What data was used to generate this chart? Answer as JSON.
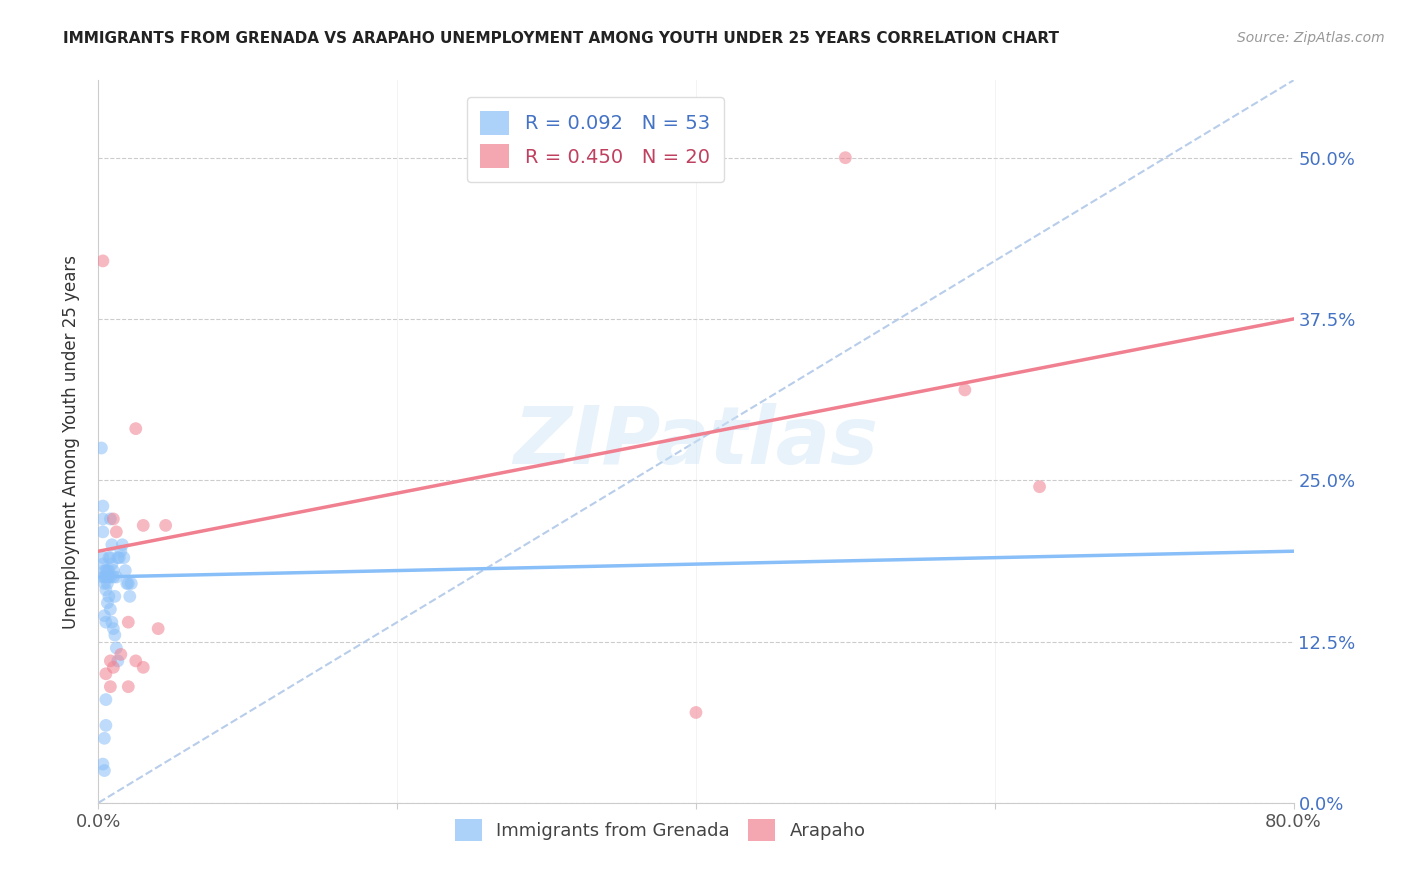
{
  "title": "IMMIGRANTS FROM GRENADA VS ARAPAHO UNEMPLOYMENT AMONG YOUTH UNDER 25 YEARS CORRELATION CHART",
  "source": "Source: ZipAtlas.com",
  "ylabel": "Unemployment Among Youth under 25 years",
  "xlim": [
    0.0,
    0.8
  ],
  "ylim": [
    0.0,
    0.56
  ],
  "yticks": [
    0.0,
    0.125,
    0.25,
    0.375,
    0.5
  ],
  "ytick_labels": [
    "0.0%",
    "12.5%",
    "25.0%",
    "37.5%",
    "50.0%"
  ],
  "xticks": [
    0.0,
    0.2,
    0.4,
    0.6,
    0.8
  ],
  "xtick_labels": [
    "0.0%",
    "",
    "",
    "",
    "80.0%"
  ],
  "watermark": "ZIPatlas",
  "legend_entries": [
    {
      "label": "R = 0.092   N = 53",
      "color": "#89bff8"
    },
    {
      "label": "R = 0.450   N = 20",
      "color": "#f080a0"
    }
  ],
  "blue_scatter_x": [
    0.002,
    0.003,
    0.003,
    0.003,
    0.003,
    0.003,
    0.004,
    0.004,
    0.004,
    0.004,
    0.004,
    0.005,
    0.005,
    0.005,
    0.005,
    0.005,
    0.006,
    0.006,
    0.006,
    0.006,
    0.007,
    0.007,
    0.007,
    0.007,
    0.008,
    0.008,
    0.008,
    0.008,
    0.009,
    0.009,
    0.009,
    0.01,
    0.01,
    0.01,
    0.011,
    0.011,
    0.012,
    0.012,
    0.013,
    0.013,
    0.014,
    0.015,
    0.016,
    0.017,
    0.018,
    0.019,
    0.02,
    0.021,
    0.022,
    0.003,
    0.005,
    0.003,
    0.004
  ],
  "blue_scatter_y": [
    0.275,
    0.19,
    0.21,
    0.22,
    0.185,
    0.175,
    0.05,
    0.17,
    0.175,
    0.18,
    0.145,
    0.08,
    0.165,
    0.175,
    0.18,
    0.14,
    0.17,
    0.175,
    0.18,
    0.155,
    0.19,
    0.175,
    0.18,
    0.16,
    0.22,
    0.19,
    0.175,
    0.15,
    0.2,
    0.185,
    0.14,
    0.18,
    0.175,
    0.135,
    0.16,
    0.13,
    0.175,
    0.12,
    0.19,
    0.11,
    0.19,
    0.195,
    0.2,
    0.19,
    0.18,
    0.17,
    0.17,
    0.16,
    0.17,
    0.23,
    0.06,
    0.03,
    0.025
  ],
  "pink_scatter_x": [
    0.003,
    0.005,
    0.008,
    0.01,
    0.012,
    0.015,
    0.02,
    0.025,
    0.03,
    0.03,
    0.04,
    0.045,
    0.5,
    0.58,
    0.63,
    0.4,
    0.01,
    0.025,
    0.02,
    0.008
  ],
  "pink_scatter_y": [
    0.42,
    0.1,
    0.11,
    0.22,
    0.21,
    0.115,
    0.14,
    0.29,
    0.215,
    0.105,
    0.135,
    0.215,
    0.5,
    0.32,
    0.245,
    0.07,
    0.105,
    0.11,
    0.09,
    0.09
  ],
  "blue_line_x0": 0.0,
  "blue_line_x1": 0.8,
  "blue_line_y0": 0.175,
  "blue_line_y1": 0.195,
  "pink_line_x0": 0.0,
  "pink_line_x1": 0.8,
  "pink_line_y0": 0.195,
  "pink_line_y1": 0.375,
  "diag_line_x0": 0.0,
  "diag_line_x1": 0.8,
  "diag_line_y0": 0.0,
  "diag_line_y1": 0.56,
  "blue_color": "#89bff8",
  "pink_color": "#f08090",
  "diag_color": "#b0c8e8",
  "scatter_alpha": 0.55,
  "scatter_size": 85
}
